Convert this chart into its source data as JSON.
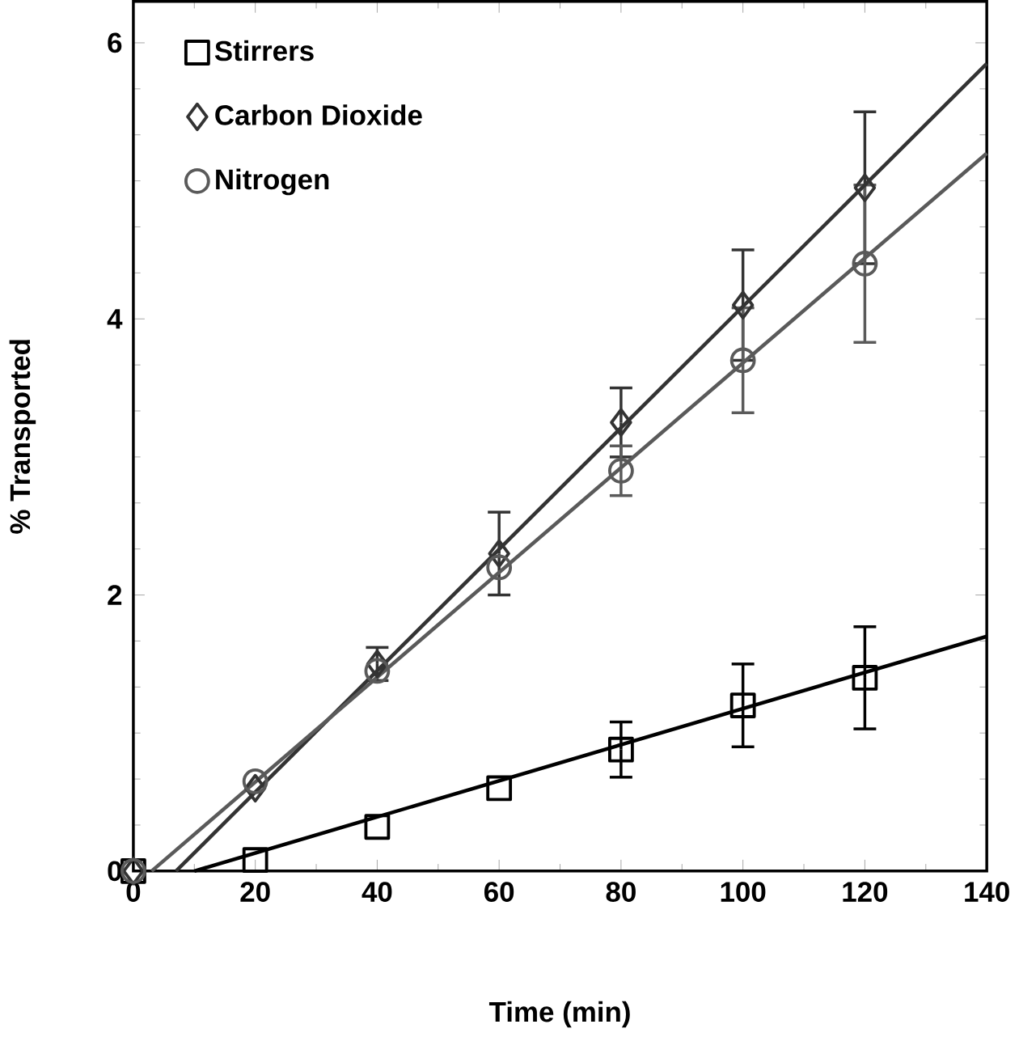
{
  "chart_data": {
    "type": "scatter",
    "xlabel": "Time (min)",
    "ylabel": "% Transported",
    "xlim": [
      0,
      140
    ],
    "ylim": [
      0,
      6.3
    ],
    "xticks": [
      0,
      20,
      40,
      60,
      80,
      100,
      120,
      140
    ],
    "yticks": [
      0,
      2,
      4,
      6
    ],
    "legend": "top left",
    "grid": false,
    "series": [
      {
        "name": "Stirrers",
        "color": "#000000",
        "marker": "square",
        "x": [
          0,
          20,
          40,
          60,
          80,
          100,
          120
        ],
        "values": [
          0,
          0.08,
          0.32,
          0.6,
          0.88,
          1.2,
          1.4
        ],
        "errors": [
          null,
          null,
          null,
          null,
          0.2,
          0.3,
          0.37
        ]
      },
      {
        "name": "Carbon Dioxide",
        "color": "#333333",
        "marker": "diamond",
        "x": [
          0,
          20,
          40,
          60,
          80,
          100,
          120
        ],
        "values": [
          0,
          0.6,
          1.5,
          2.3,
          3.25,
          4.1,
          4.95
        ],
        "errors": [
          null,
          null,
          0.12,
          0.3,
          0.25,
          0.4,
          0.55
        ]
      },
      {
        "name": "Nitrogen",
        "color": "#5a5a5a",
        "marker": "circle",
        "x": [
          0,
          20,
          40,
          60,
          80,
          100,
          120
        ],
        "values": [
          0,
          0.65,
          1.45,
          2.2,
          2.9,
          3.7,
          4.4
        ],
        "errors": [
          null,
          null,
          null,
          null,
          0.18,
          0.38,
          0.57
        ]
      },
      {
        "type": "line",
        "color": "#000000",
        "marker": "none",
        "x": [
          10,
          140
        ],
        "values": [
          0,
          1.7
        ]
      },
      {
        "type": "line",
        "color": "#333333",
        "marker": "none",
        "x": [
          7,
          140
        ],
        "values": [
          0,
          5.85
        ]
      },
      {
        "type": "line",
        "color": "#5a5a5a",
        "marker": "none",
        "x": [
          3,
          140
        ],
        "values": [
          0,
          5.2
        ]
      }
    ]
  }
}
